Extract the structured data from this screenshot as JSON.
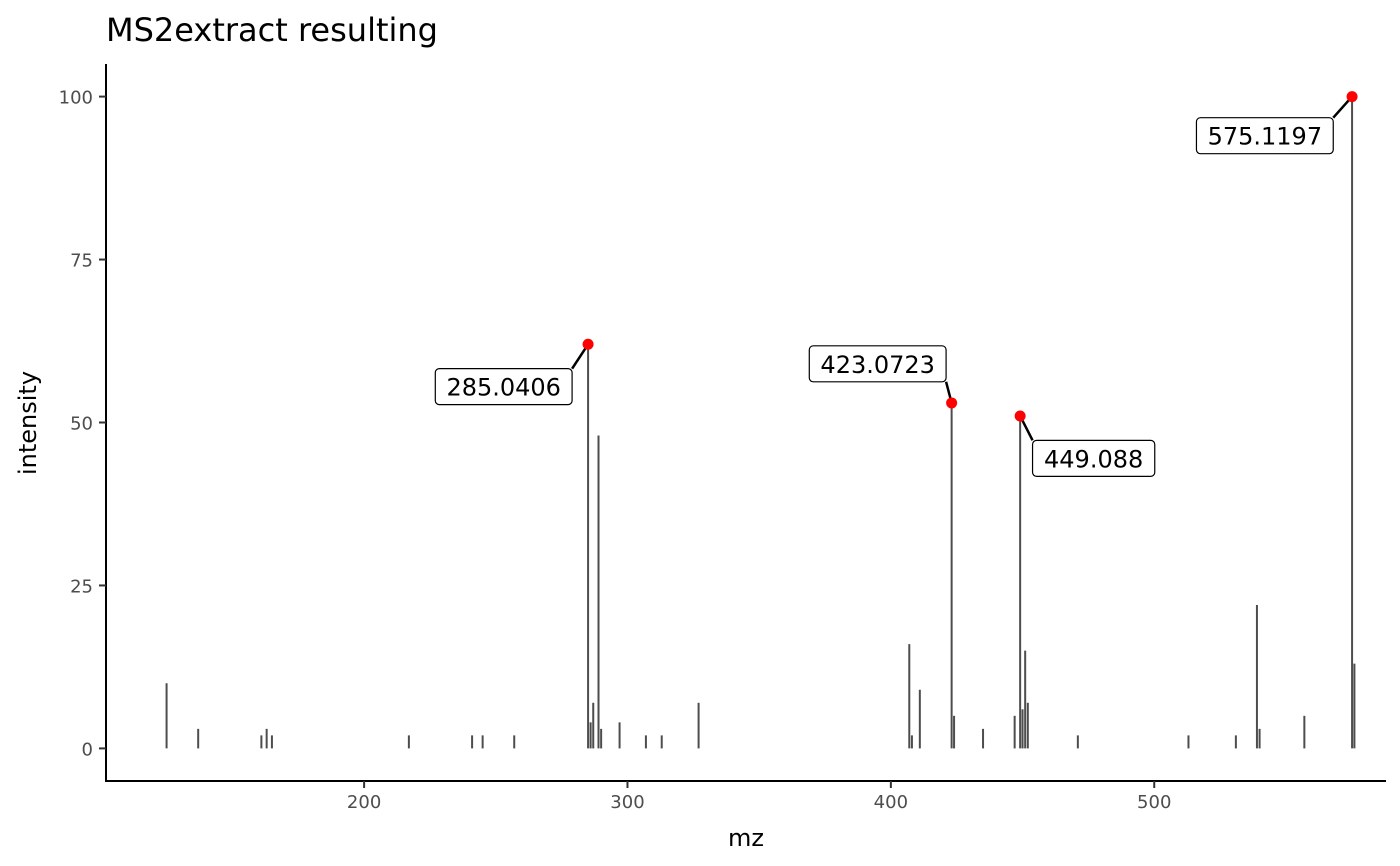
{
  "chart_data": {
    "type": "bar",
    "title": "MS2extract resulting",
    "xlabel": "mz",
    "ylabel": "intensity",
    "xlim": [
      102,
      588
    ],
    "ylim": [
      -5,
      105
    ],
    "xticks": [
      200,
      300,
      400,
      500
    ],
    "yticks": [
      0,
      25,
      50,
      75,
      100
    ],
    "grid": false,
    "colors": {
      "stick": "#4d4d4d",
      "highlight": "#ff0000",
      "axis": "#000000"
    },
    "peaks": [
      {
        "mz": 125.0,
        "intensity": 10
      },
      {
        "mz": 137.0,
        "intensity": 3
      },
      {
        "mz": 161.0,
        "intensity": 2
      },
      {
        "mz": 163.0,
        "intensity": 3
      },
      {
        "mz": 165.0,
        "intensity": 2
      },
      {
        "mz": 217.0,
        "intensity": 2
      },
      {
        "mz": 241.0,
        "intensity": 2
      },
      {
        "mz": 245.0,
        "intensity": 2
      },
      {
        "mz": 257.0,
        "intensity": 2
      },
      {
        "mz": 285.0406,
        "intensity": 62
      },
      {
        "mz": 286.0,
        "intensity": 4
      },
      {
        "mz": 287.0,
        "intensity": 7
      },
      {
        "mz": 289.0,
        "intensity": 48
      },
      {
        "mz": 290.0,
        "intensity": 3
      },
      {
        "mz": 297.0,
        "intensity": 4
      },
      {
        "mz": 307.0,
        "intensity": 2
      },
      {
        "mz": 313.0,
        "intensity": 2
      },
      {
        "mz": 327.0,
        "intensity": 7
      },
      {
        "mz": 407.0,
        "intensity": 16
      },
      {
        "mz": 408.0,
        "intensity": 2
      },
      {
        "mz": 411.0,
        "intensity": 9
      },
      {
        "mz": 423.0723,
        "intensity": 53
      },
      {
        "mz": 424.0,
        "intensity": 5
      },
      {
        "mz": 435.0,
        "intensity": 3
      },
      {
        "mz": 447.0,
        "intensity": 5
      },
      {
        "mz": 449.088,
        "intensity": 51
      },
      {
        "mz": 450.0,
        "intensity": 6
      },
      {
        "mz": 451.0,
        "intensity": 15
      },
      {
        "mz": 452.0,
        "intensity": 7
      },
      {
        "mz": 471.0,
        "intensity": 2
      },
      {
        "mz": 513.0,
        "intensity": 2
      },
      {
        "mz": 531.0,
        "intensity": 2
      },
      {
        "mz": 539.0,
        "intensity": 22
      },
      {
        "mz": 540.0,
        "intensity": 3
      },
      {
        "mz": 557.0,
        "intensity": 5
      },
      {
        "mz": 575.1197,
        "intensity": 100
      },
      {
        "mz": 576.0,
        "intensity": 13
      }
    ],
    "annotations": [
      {
        "label": "285.0406",
        "mz": 285.0406,
        "intensity": 62,
        "label_mz": 253,
        "label_intensity": 55.5
      },
      {
        "label": "423.0723",
        "mz": 423.0723,
        "intensity": 53,
        "label_mz": 395,
        "label_intensity": 59
      },
      {
        "label": "449.088",
        "mz": 449.088,
        "intensity": 51,
        "label_mz": 477,
        "label_intensity": 44.5
      },
      {
        "label": "575.1197",
        "mz": 575.1197,
        "intensity": 100,
        "label_mz": 542,
        "label_intensity": 94
      }
    ]
  }
}
